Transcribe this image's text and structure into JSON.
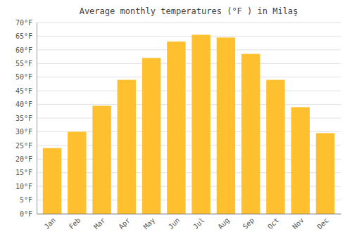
{
  "chart_data": {
    "type": "bar",
    "title": "Average monthly temperatures (°F ) in Milaş",
    "categories": [
      "Jan",
      "Feb",
      "Mar",
      "Apr",
      "May",
      "Jun",
      "Jul",
      "Aug",
      "Sep",
      "Oct",
      "Nov",
      "Dec"
    ],
    "values": [
      24,
      30,
      39.5,
      49,
      57,
      63,
      65.5,
      64.5,
      58.5,
      49,
      39,
      29.5
    ],
    "color": "#FFC030",
    "ylim": [
      0,
      70
    ],
    "yticks": [
      {
        "value": 0,
        "label": "0°F"
      },
      {
        "value": 5,
        "label": "5°F"
      },
      {
        "value": 10,
        "label": "10°F"
      },
      {
        "value": 15,
        "label": "15°F"
      },
      {
        "value": 20,
        "label": "20°F"
      },
      {
        "value": 25,
        "label": "25°F"
      },
      {
        "value": 30,
        "label": "30°F"
      },
      {
        "value": 35,
        "label": "35°F"
      },
      {
        "value": 40,
        "label": "40°F"
      },
      {
        "value": 45,
        "label": "45°F"
      },
      {
        "value": 50,
        "label": "50°F"
      },
      {
        "value": 55,
        "label": "55°F"
      },
      {
        "value": 60,
        "label": "60°F"
      },
      {
        "value": 65,
        "label": "65°F"
      },
      {
        "value": 70,
        "label": "70°F"
      }
    ],
    "grid": true
  }
}
